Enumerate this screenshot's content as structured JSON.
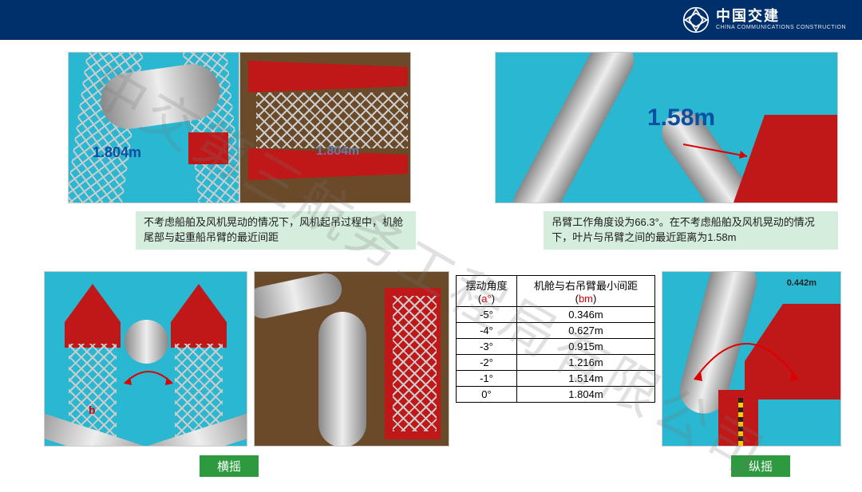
{
  "header": {
    "brand_cn": "中国交建",
    "brand_en": "CHINA COMMUNICATIONS CONSTRUCTION"
  },
  "row1": {
    "img_a": {
      "annotation": "1.804m",
      "annot_color": "#0a4fa0",
      "annot_fontsize": 18,
      "bg": "#29b7d1"
    },
    "img_b": {
      "annotation": "1.804m",
      "annot_color": "#5a6a8a",
      "annot_fontsize": 16,
      "bg": "#6b5a46"
    },
    "img_c": {
      "annotation": "1.58m",
      "annot_color": "#0a4fa0",
      "annot_fontsize": 30,
      "bg": "#29b7d1"
    },
    "caption_a": "不考虑船舶及风机晃动的情况下，风机起吊过程中，机舱尾部与起重船吊臂的最近间距",
    "caption_b": "吊臂工作角度设为66.3°。在不考虑船舶及风机晃动的情况下，叶片与吊臂之间的最近距离为1.58m"
  },
  "table": {
    "header_a": "摆动角度",
    "header_b": "机舱与右吊臂最小间距",
    "unit_a": "a°",
    "unit_b": "bm",
    "rows": [
      [
        "-5°",
        "0.346m"
      ],
      [
        "-4°",
        "0.627m"
      ],
      [
        "-3°",
        "0.915m"
      ],
      [
        "-2°",
        "1.216m"
      ],
      [
        "-1°",
        "1.514m"
      ],
      [
        "0°",
        "1.804m"
      ]
    ]
  },
  "row2": {
    "img_a": {
      "bg": "#29b7d1",
      "marker": "b"
    },
    "img_b": {
      "bg": "#6b5a46"
    },
    "img_c": {
      "bg": "#29b7d1",
      "annotation": "0.442m",
      "annot_fontsize": 11
    },
    "label_left": "横摇",
    "label_right": "纵摇"
  },
  "watermark": "中交第三航务工程局有限公司",
  "colors": {
    "header_bg": "#00306b",
    "caption_bg": "#d5eddc",
    "label_bg": "#2e9a3f",
    "crane_red": "#c01818",
    "sky": "#29b7d1"
  }
}
